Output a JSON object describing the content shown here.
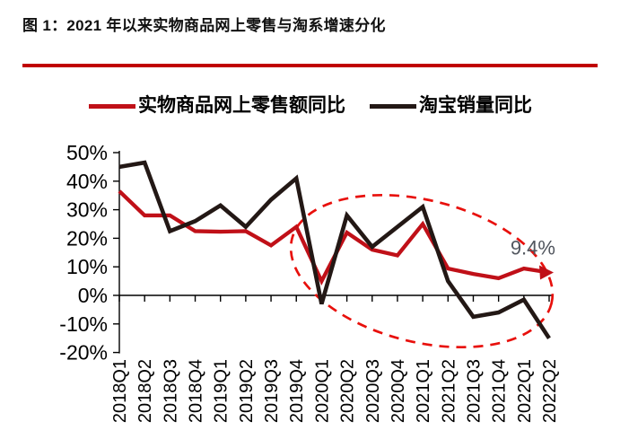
{
  "title": "图 1：2021 年以来实物商品网上零售与淘系增速分化",
  "colors": {
    "title_rule": "#c00000",
    "axis": "#000000",
    "retail_line": "#c01018",
    "taobao_line": "#231815",
    "highlight": "#e8100c",
    "annotation_text": "#51565e"
  },
  "chart_data": {
    "type": "line",
    "categories": [
      "2018Q1",
      "2018Q2",
      "2018Q3",
      "2018Q4",
      "2019Q1",
      "2019Q2",
      "2019Q3",
      "2019Q4",
      "2020Q1",
      "2020Q2",
      "2020Q3",
      "2020Q4",
      "2021Q1",
      "2021Q2",
      "2021Q3",
      "2021Q4",
      "2022Q1",
      "2022Q2"
    ],
    "series": [
      {
        "name": "实物商品网上零售额同比",
        "color": "#c01018",
        "values": [
          36.5,
          28,
          28,
          22.5,
          22.3,
          22.5,
          17.5,
          24,
          5,
          22,
          16,
          14,
          25,
          9.4,
          7.5,
          6,
          9.4,
          8
        ]
      },
      {
        "name": "淘宝销量同比",
        "color": "#231815",
        "values": [
          45,
          46.5,
          22.5,
          26,
          31.5,
          24,
          33.5,
          41,
          -3,
          28,
          17,
          24,
          31,
          5,
          -7.5,
          -6,
          -1.5,
          -15
        ]
      }
    ],
    "ylim": [
      -20,
      50
    ],
    "yticks": [
      50,
      40,
      30,
      20,
      10,
      0,
      -10,
      -20
    ],
    "ytick_suffix": "%",
    "grid": false,
    "legend_position": "top",
    "x_axis_at_zero": true,
    "annotations": [
      {
        "type": "text",
        "text": "9.4%",
        "near_category": "2022Q1",
        "color": "#51565e"
      },
      {
        "type": "dashed-ellipse",
        "color": "#e8100c",
        "note": "highlights 2020Q1-2022Q2 divergence region"
      },
      {
        "type": "arrowhead",
        "color": "#c01018",
        "at_category": "2022Q2",
        "series": "实物商品网上零售额同比"
      }
    ]
  }
}
